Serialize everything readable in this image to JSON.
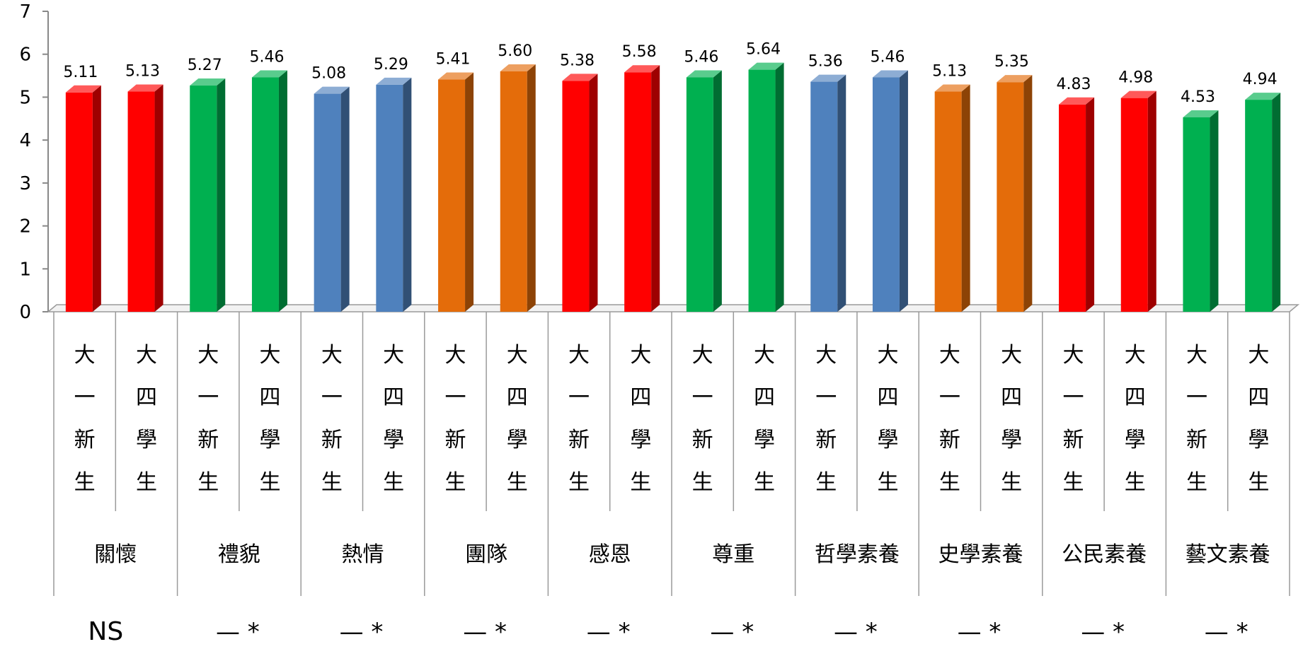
{
  "chart_data": {
    "type": "bar",
    "title": "",
    "xlabel": "",
    "ylabel": "",
    "ylim": [
      0,
      7
    ],
    "yticks": [
      "0",
      "1",
      "2",
      "3",
      "4",
      "5",
      "6",
      "7"
    ],
    "legend": "none",
    "grid": false,
    "three_d": true,
    "sublabel_first": "大一新生",
    "sublabel_second": "大四學生",
    "groups": [
      {
        "name": "關懷",
        "color": "#ff0000",
        "values": [
          5.11,
          5.13
        ],
        "value_labels": [
          "5.11",
          "5.13"
        ],
        "significance": "NS"
      },
      {
        "name": "禮貌",
        "color": "#00b050",
        "values": [
          5.27,
          5.46
        ],
        "value_labels": [
          "5.27",
          "5.46"
        ],
        "significance": "— *"
      },
      {
        "name": "熱情",
        "color": "#4f81bd",
        "values": [
          5.08,
          5.29
        ],
        "value_labels": [
          "5.08",
          "5.29"
        ],
        "significance": "— *"
      },
      {
        "name": "團隊",
        "color": "#e46c0a",
        "values": [
          5.41,
          5.6
        ],
        "value_labels": [
          "5.41",
          "5.60"
        ],
        "significance": "— *"
      },
      {
        "name": "感恩",
        "color": "#ff0000",
        "values": [
          5.38,
          5.58
        ],
        "value_labels": [
          "5.38",
          "5.58"
        ],
        "significance": "— *"
      },
      {
        "name": "尊重",
        "color": "#00b050",
        "values": [
          5.46,
          5.64
        ],
        "value_labels": [
          "5.46",
          "5.64"
        ],
        "significance": "— *"
      },
      {
        "name": "哲學素養",
        "color": "#4f81bd",
        "values": [
          5.36,
          5.46
        ],
        "value_labels": [
          "5.36",
          "5.46"
        ],
        "significance": "— *"
      },
      {
        "name": "史學素養",
        "color": "#e46c0a",
        "values": [
          5.13,
          5.35
        ],
        "value_labels": [
          "5.13",
          "5.35"
        ],
        "significance": "— *"
      },
      {
        "name": "公民素養",
        "color": "#ff0000",
        "values": [
          4.83,
          4.98
        ],
        "value_labels": [
          "4.83",
          "4.98"
        ],
        "significance": "— *"
      },
      {
        "name": "藝文素養",
        "color": "#00b050",
        "values": [
          4.53,
          4.94
        ],
        "value_labels": [
          "4.53",
          "4.94"
        ],
        "significance": "— *"
      }
    ]
  }
}
